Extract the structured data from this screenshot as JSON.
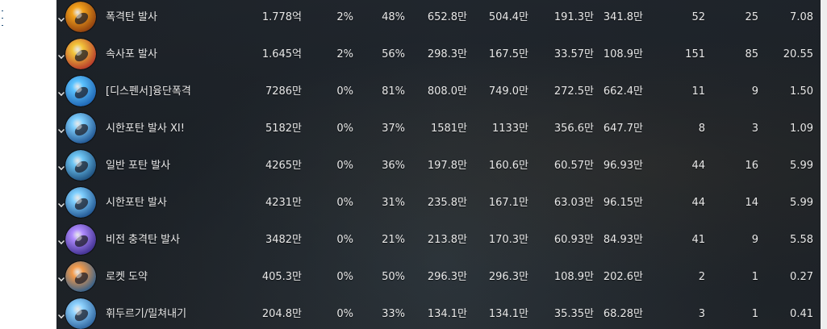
{
  "colors": {
    "panel_background": "#1f252b",
    "text": "#e9e9e9"
  },
  "skills": [
    {
      "name": "폭격탄 발사",
      "icon": "bomb-shell-icon",
      "total": "1.778억",
      "crit": "2%",
      "direct": "48%",
      "max": "652.8만",
      "avg": "504.4만",
      "c6": "191.3만",
      "c7": "341.8만",
      "hits": "52",
      "count": "25",
      "last": "7.08",
      "icon_colors": [
        "#f2a21b",
        "#8a3a0e"
      ]
    },
    {
      "name": "속사포 발사",
      "icon": "rapid-cannon-icon",
      "total": "1.645억",
      "crit": "2%",
      "direct": "56%",
      "max": "298.3만",
      "avg": "167.5만",
      "c6": "33.57만",
      "c7": "108.9만",
      "hits": "151",
      "count": "85",
      "last": "20.55",
      "icon_colors": [
        "#f3c53a",
        "#b3322a"
      ]
    },
    {
      "name": "[디스펜서]융단폭격",
      "icon": "carpet-bombing-icon",
      "total": "7286만",
      "crit": "0%",
      "direct": "81%",
      "max": "808.0만",
      "avg": "749.0만",
      "c6": "272.5만",
      "c7": "662.4만",
      "hits": "11",
      "count": "9",
      "last": "1.50",
      "icon_colors": [
        "#5cc3ff",
        "#1a5fae"
      ]
    },
    {
      "name": "시한포탄 발사 XI!",
      "icon": "timed-shell-xi-icon",
      "total": "5182만",
      "crit": "0%",
      "direct": "37%",
      "max": "1581만",
      "avg": "1133만",
      "c6": "356.6만",
      "c7": "647.7만",
      "hits": "8",
      "count": "3",
      "last": "1.09",
      "icon_colors": [
        "#7fd0ff",
        "#1c4f8c"
      ]
    },
    {
      "name": "일반 포탄 발사",
      "icon": "normal-shell-icon",
      "total": "4265만",
      "crit": "0%",
      "direct": "36%",
      "max": "197.8만",
      "avg": "160.6만",
      "c6": "60.57만",
      "c7": "96.93만",
      "hits": "44",
      "count": "16",
      "last": "5.99",
      "icon_colors": [
        "#6ec6f5",
        "#1a4a78"
      ]
    },
    {
      "name": "시한포탄 발사",
      "icon": "timed-shell-icon",
      "total": "4231만",
      "crit": "0%",
      "direct": "31%",
      "max": "235.8만",
      "avg": "167.1만",
      "c6": "63.03만",
      "c7": "96.15만",
      "hits": "44",
      "count": "14",
      "last": "5.99",
      "icon_colors": [
        "#7fd0ff",
        "#1c4f8c"
      ]
    },
    {
      "name": "비전 충격탄 발사",
      "icon": "arcane-shock-shell-icon",
      "total": "3482만",
      "crit": "0%",
      "direct": "21%",
      "max": "213.8만",
      "avg": "170.3만",
      "c6": "60.93만",
      "c7": "84.93만",
      "hits": "41",
      "count": "9",
      "last": "5.58",
      "icon_colors": [
        "#b08cff",
        "#3a2b8a"
      ]
    },
    {
      "name": "로켓 도약",
      "icon": "rocket-leap-icon",
      "total": "405.3만",
      "crit": "0%",
      "direct": "50%",
      "max": "296.3만",
      "avg": "296.3만",
      "c6": "108.9만",
      "c7": "202.6만",
      "hits": "2",
      "count": "1",
      "last": "0.27",
      "icon_colors": [
        "#f39a4a",
        "#2a5d8f"
      ]
    },
    {
      "name": "휘두르기/밀쳐내기",
      "icon": "swing-push-icon",
      "total": "204.8만",
      "crit": "0%",
      "direct": "33%",
      "max": "134.1만",
      "avg": "134.1만",
      "c6": "35.35만",
      "c7": "68.28만",
      "hits": "3",
      "count": "1",
      "last": "0.41",
      "icon_colors": [
        "#8fd3ff",
        "#2a5f9a"
      ]
    }
  ]
}
